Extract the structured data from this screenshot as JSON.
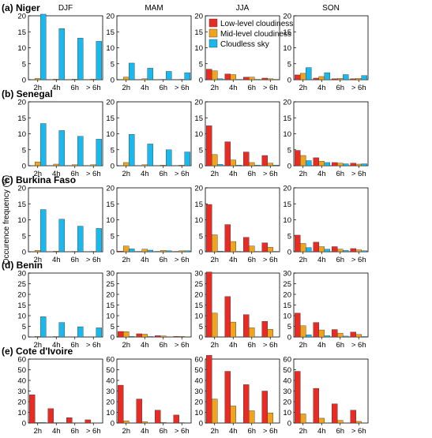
{
  "chart_data": {
    "type": "bar",
    "seasons": [
      "DJF",
      "MAM",
      "JJA",
      "SON"
    ],
    "categories": [
      "2h",
      "4h",
      "6h",
      "> 6h"
    ],
    "ylabel": "Occurence frequency (%)",
    "legend": {
      "placement": "top-right",
      "entries": [
        "Low-level cloudiness",
        "Mid-level cloudiness",
        "Cloudless sky"
      ]
    },
    "series_colors": [
      "#e82b25",
      "#f0a31c",
      "#1ab8ec"
    ],
    "rows": [
      {
        "label": "(a) Niger",
        "ylim": [
          0,
          20
        ],
        "yticks": [
          "0",
          "5",
          "10",
          "15",
          "20"
        ],
        "panels": [
          {
            "low": [
              0,
              0,
              0,
              0
            ],
            "mid": [
              0.4,
              0.2,
              0.2,
              0.2
            ],
            "clear": [
              20.5,
              16,
              13,
              12
            ]
          },
          {
            "low": [
              0,
              0,
              0,
              0
            ],
            "mid": [
              0.8,
              0.3,
              0.1,
              0.1
            ],
            "clear": [
              5.2,
              3.6,
              2.6,
              2.2
            ]
          },
          {
            "low": [
              3.3,
              1.8,
              0.8,
              0.5
            ],
            "mid": [
              2.8,
              1.6,
              0.8,
              0.3
            ],
            "clear": [
              0.3,
              0.1,
              0.1,
              0.1
            ]
          },
          {
            "low": [
              1.5,
              0.5,
              0.3,
              0.3
            ],
            "mid": [
              2.0,
              1.0,
              0.4,
              0.4
            ],
            "clear": [
              3.8,
              2.2,
              1.6,
              1.3
            ]
          }
        ]
      },
      {
        "label": "(b) Senegal",
        "ylim": [
          0,
          20
        ],
        "yticks": [
          "0",
          "5",
          "10",
          "15",
          "20"
        ],
        "panels": [
          {
            "low": [
              0,
              0,
              0,
              0
            ],
            "mid": [
              1.2,
              0.5,
              0.3,
              0.3
            ],
            "clear": [
              13.2,
              11,
              9.2,
              8.3
            ]
          },
          {
            "low": [
              0,
              0,
              0,
              0
            ],
            "mid": [
              1.0,
              0.3,
              0.2,
              0.2
            ],
            "clear": [
              9.8,
              6.8,
              5.0,
              4.3
            ]
          },
          {
            "low": [
              12.5,
              7.5,
              4.3,
              3.2
            ],
            "mid": [
              3.5,
              1.8,
              1.0,
              0.8
            ],
            "clear": [
              0.4,
              0.2,
              0.2,
              0.2
            ]
          },
          {
            "low": [
              4.8,
              2.5,
              1.0,
              0.8
            ],
            "mid": [
              3.2,
              1.4,
              0.8,
              0.5
            ],
            "clear": [
              1.6,
              1.0,
              0.6,
              0.6
            ]
          }
        ]
      },
      {
        "label": "(c) Burkina Faso",
        "ylim": [
          0,
          20
        ],
        "yticks": [
          "0",
          "5",
          "10",
          "15",
          "20"
        ],
        "panels": [
          {
            "low": [
              0,
              0,
              0,
              0
            ],
            "mid": [
              0.4,
              0.2,
              0.1,
              0.1
            ],
            "clear": [
              13.2,
              10.2,
              8.0,
              7.3
            ]
          },
          {
            "low": [
              0.2,
              0.1,
              0.1,
              0.1
            ],
            "mid": [
              1.8,
              0.8,
              0.4,
              0.3
            ],
            "clear": [
              0.9,
              0.5,
              0.3,
              0.3
            ]
          },
          {
            "low": [
              14.8,
              8.5,
              4.5,
              2.8
            ],
            "mid": [
              5.3,
              3.2,
              1.8,
              1.4
            ],
            "clear": [
              0.2,
              0.1,
              0.1,
              0.1
            ]
          },
          {
            "low": [
              5.2,
              3.0,
              1.6,
              1.0
            ],
            "mid": [
              2.6,
              1.6,
              0.8,
              0.6
            ],
            "clear": [
              1.3,
              0.8,
              0.4,
              0.3
            ]
          }
        ]
      },
      {
        "label": "(d) Benin",
        "ylim": [
          0,
          30
        ],
        "yticks": [
          "0",
          "5",
          "10",
          "15",
          "20",
          "25",
          "30"
        ],
        "panels": [
          {
            "low": [
              0,
              0,
              0,
              0
            ],
            "mid": [
              0.3,
              0.2,
              0.1,
              0.1
            ],
            "clear": [
              9.5,
              6.8,
              4.8,
              4.3
            ]
          },
          {
            "low": [
              2.6,
              1.5,
              0.6,
              0.3
            ],
            "mid": [
              2.5,
              1.3,
              0.5,
              0.3
            ],
            "clear": [
              0.3,
              0.2,
              0.1,
              0.1
            ]
          },
          {
            "low": [
              30.5,
              19.0,
              10.5,
              7.3
            ],
            "mid": [
              11.2,
              7.0,
              4.3,
              3.6
            ],
            "clear": [
              0.1,
              0.1,
              0.1,
              0.1
            ]
          },
          {
            "low": [
              11.2,
              6.8,
              3.5,
              2.3
            ],
            "mid": [
              5.3,
              3.3,
              1.8,
              1.2
            ],
            "clear": [
              1.0,
              0.6,
              0.4,
              0.2
            ]
          }
        ]
      },
      {
        "label": "(e) Cote d'Ivoire",
        "ylim": [
          0,
          60
        ],
        "yticks": [
          "0",
          "10",
          "20",
          "30",
          "40",
          "50",
          "60"
        ],
        "panels": [
          {
            "low": [
              26.5,
              13.5,
              5.0,
              3.0
            ],
            "mid": [
              0.5,
              0.3,
              0.2,
              0.1
            ],
            "clear": [
              0.5,
              0.3,
              0.2,
              0.1
            ]
          },
          {
            "low": [
              35.5,
              22.5,
              12.0,
              7.5
            ],
            "mid": [
              2.0,
              1.2,
              0.6,
              0.3
            ],
            "clear": [
              0.2,
              0.1,
              0.1,
              0.1
            ]
          },
          {
            "low": [
              63.5,
              48.5,
              36.0,
              30.0
            ],
            "mid": [
              22.5,
              16.0,
              11.5,
              9.5
            ],
            "clear": [
              0.1,
              0.1,
              0.1,
              0.1
            ]
          },
          {
            "low": [
              48.5,
              32.5,
              18.0,
              12.0
            ],
            "mid": [
              8.5,
              4.5,
              2.5,
              1.5
            ],
            "clear": [
              0.3,
              0.2,
              0.1,
              0.1
            ]
          }
        ]
      }
    ]
  }
}
